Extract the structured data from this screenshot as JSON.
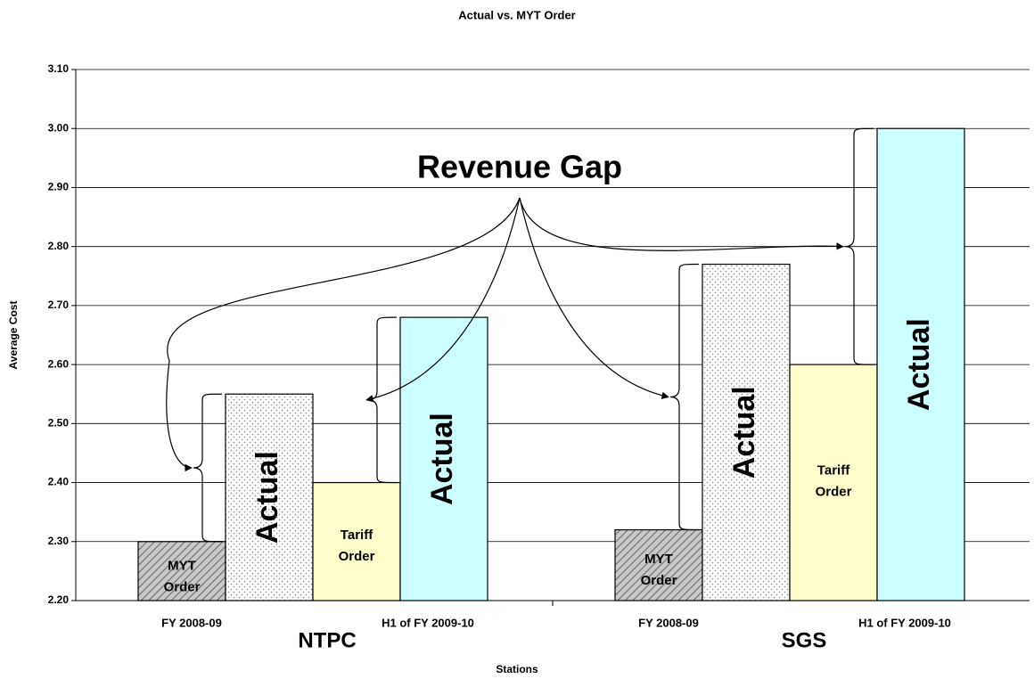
{
  "chart_data": {
    "type": "bar",
    "title": "Actual vs. MYT Order",
    "x_label": "Stations",
    "y_label": "Average Cost",
    "annotation": "Revenue Gap",
    "ylim": [
      2.2,
      3.1
    ],
    "yticks": [
      {
        "value": 2.2,
        "label": "2.20"
      },
      {
        "value": 2.3,
        "label": "2.30"
      },
      {
        "value": 2.4,
        "label": "2.40"
      },
      {
        "value": 2.5,
        "label": "2.50"
      },
      {
        "value": 2.6,
        "label": "2.60"
      },
      {
        "value": 2.7,
        "label": "2.70"
      },
      {
        "value": 2.8,
        "label": "2.80"
      },
      {
        "value": 2.9,
        "label": "2.90"
      },
      {
        "value": 3.0,
        "label": "3.00"
      },
      {
        "value": 3.1,
        "label": "3.10"
      }
    ],
    "grid": true,
    "groups": [
      {
        "name": "NTPC",
        "periods": [
          "FY 2008-09",
          "H1 of FY 2009-10"
        ],
        "bars": [
          {
            "label": [
              "MYT",
              "Order"
            ],
            "value": 2.3,
            "color": "#bbbbbb",
            "pattern": "hatch"
          },
          {
            "label": [
              "Actual"
            ],
            "value": 2.55,
            "color": "#ffffff",
            "pattern": "dots"
          },
          {
            "label": [
              "Tariff",
              "Order"
            ],
            "value": 2.4,
            "color": "#ffffcc"
          },
          {
            "label": [
              "Actual"
            ],
            "value": 2.68,
            "color": "#ccffff"
          }
        ]
      },
      {
        "name": "SGS",
        "periods": [
          "FY 2008-09",
          "H1 of FY 2009-10"
        ],
        "bars": [
          {
            "label": [
              "MYT",
              "Order"
            ],
            "value": 2.32,
            "color": "#bbbbbb",
            "pattern": "hatch"
          },
          {
            "label": [
              "Actual"
            ],
            "value": 2.77,
            "color": "#ffffff",
            "pattern": "dots"
          },
          {
            "label": [
              "Tariff",
              "Order"
            ],
            "value": 2.6,
            "color": "#ffffcc"
          },
          {
            "label": [
              "Actual"
            ],
            "value": 3.0,
            "color": "#ccffff"
          }
        ]
      }
    ]
  }
}
